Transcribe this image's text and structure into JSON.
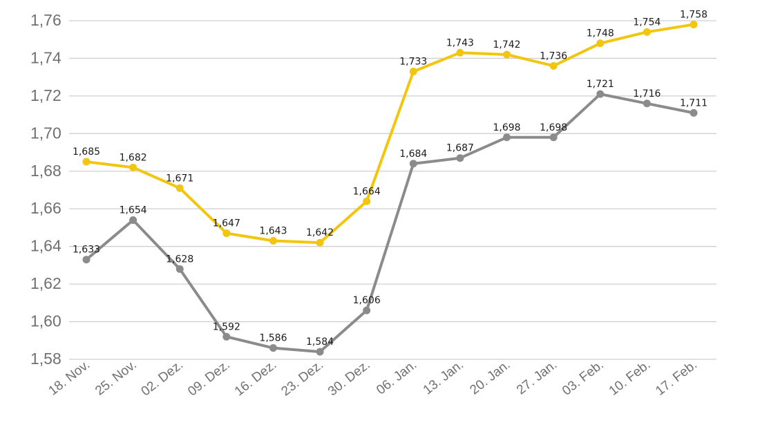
{
  "chart_data": {
    "type": "line",
    "title": "",
    "xlabel": "",
    "ylabel": "",
    "categories": [
      "18. Nov.",
      "25. Nov.",
      "02. Dez.",
      "09. Dez.",
      "16. Dez.",
      "23. Dez.",
      "30. Dez.",
      "06. Jan.",
      "13. Jan.",
      "20. Jan.",
      "27. Jan.",
      "03. Feb.",
      "10. Feb.",
      "17. Feb."
    ],
    "ylim": [
      1.575,
      1.765
    ],
    "yticks": [
      1.58,
      1.6,
      1.62,
      1.64,
      1.66,
      1.68,
      1.7,
      1.72,
      1.74,
      1.76
    ],
    "ytick_labels": [
      "1,58",
      "1,60",
      "1,62",
      "1,64",
      "1,66",
      "1,68",
      "1,70",
      "1,72",
      "1,74",
      "1,76"
    ],
    "grid": true,
    "legend": "none",
    "series": [
      {
        "color": "#f2c50f",
        "values": [
          1.685,
          1.682,
          1.671,
          1.647,
          1.643,
          1.642,
          1.664,
          1.733,
          1.743,
          1.742,
          1.736,
          1.748,
          1.754,
          1.758
        ],
        "labels": [
          "1,685",
          "1,682",
          "1,671",
          "1,647",
          "1,643",
          "1,642",
          "1,664",
          "1,733",
          "1,743",
          "1,742",
          "1,736",
          "1,748",
          "1,754",
          "1,758"
        ]
      },
      {
        "color": "#8c8a8d",
        "values": [
          1.633,
          1.654,
          1.628,
          1.592,
          1.586,
          1.584,
          1.606,
          1.684,
          1.687,
          1.698,
          1.698,
          1.721,
          1.716,
          1.711
        ],
        "labels": [
          "1,633",
          "1,654",
          "1,628",
          "1,592",
          "1,586",
          "1,584",
          "1,606",
          "1,684",
          "1,687",
          "1,698",
          "1,698",
          "1,721",
          "1,716",
          "1,711"
        ]
      }
    ]
  }
}
